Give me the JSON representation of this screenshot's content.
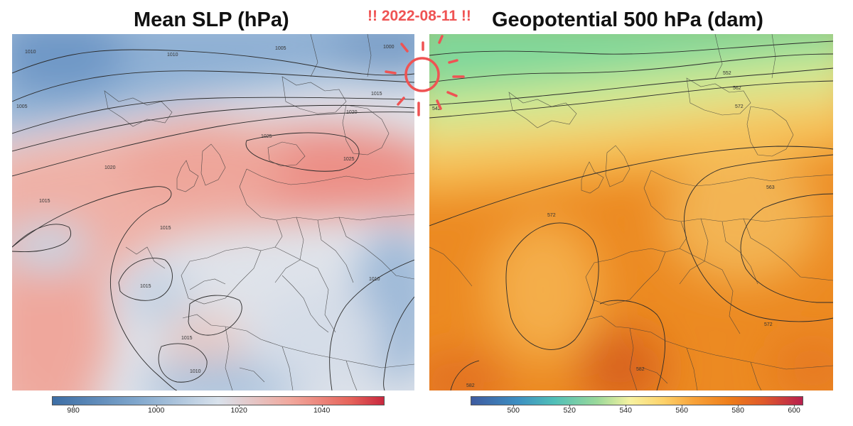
{
  "date_label": "!! 2022-08-11 !!",
  "left_panel": {
    "title": "Mean SLP (hPa)",
    "colorbar_ticks": [
      "980",
      "1000",
      "1020",
      "1040"
    ],
    "colorbar_range": [
      975,
      1055
    ],
    "contour_labels": [
      "1010",
      "1005",
      "1000",
      "1015",
      "1020",
      "1025",
      "1025",
      "1020",
      "1015",
      "1015",
      "1015",
      "1010",
      "1015",
      "1010",
      "1005",
      "1010"
    ]
  },
  "right_panel": {
    "title": "Geopotential 500 hPa (dam)",
    "colorbar_ticks": [
      "500",
      "520",
      "540",
      "560",
      "580",
      "600"
    ],
    "colorbar_range": [
      485,
      603
    ],
    "contour_labels": [
      "552",
      "562",
      "572",
      "542",
      "572",
      "563",
      "572",
      "582",
      "582"
    ]
  },
  "colors": {
    "date_accent": "#ef5353",
    "sun_accent": "#ef5353",
    "contour": "#2b2b2b",
    "border": "#3a3a3a"
  },
  "icons": {
    "date_decoration": "sun-icon"
  }
}
